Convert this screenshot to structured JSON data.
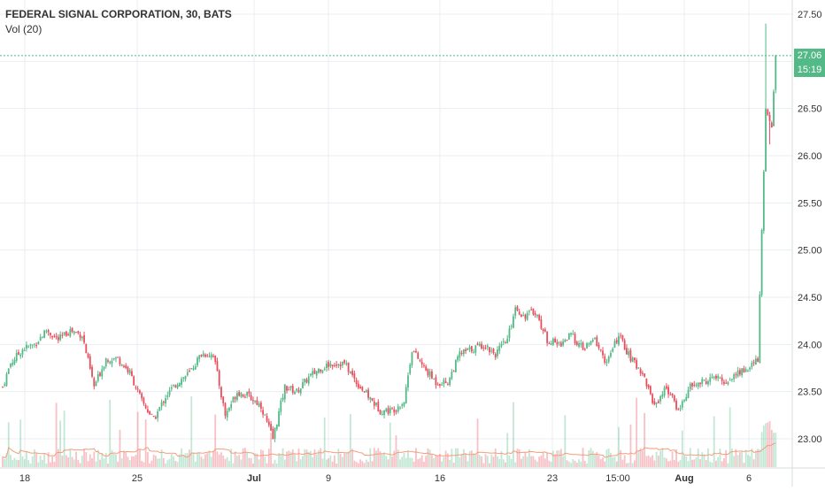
{
  "legend": {
    "title": "FEDERAL SIGNAL CORPORATION, 30, BATS",
    "volume_label": "Vol (20)"
  },
  "last_price_label": "27.06",
  "countdown_label": "15:19",
  "colors": {
    "up": "#53b987",
    "down": "#eb4d5c",
    "grid": "#e9eef2",
    "axis_text": "#333333",
    "price_tag": "#53b987",
    "volume_ma": "#f59d7b"
  },
  "chart_data": {
    "type": "candlestick",
    "symbol": "FEDERAL SIGNAL CORPORATION",
    "interval": "30",
    "exchange": "BATS",
    "y_ticks": [
      "27.50",
      "27.00",
      "26.50",
      "26.00",
      "25.50",
      "25.00",
      "24.50",
      "24.00",
      "23.50",
      "23.00"
    ],
    "ylim": [
      22.7,
      27.65
    ],
    "x_ticks": [
      "18",
      "25",
      "Jul",
      "9",
      "16",
      "23",
      "15:00",
      "Aug",
      "6"
    ],
    "bold_x_ticks": [
      "Jul",
      "Aug"
    ],
    "last_price": 27.06,
    "approx_close_path": [
      {
        "bar": 0,
        "close": 23.55
      },
      {
        "bar": 4,
        "close": 23.8
      },
      {
        "bar": 10,
        "close": 23.95
      },
      {
        "bar": 16,
        "close": 24.0
      },
      {
        "bar": 22,
        "close": 24.15
      },
      {
        "bar": 28,
        "close": 24.05
      },
      {
        "bar": 34,
        "close": 24.15
      },
      {
        "bar": 40,
        "close": 24.1
      },
      {
        "bar": 46,
        "close": 23.55
      },
      {
        "bar": 52,
        "close": 23.85
      },
      {
        "bar": 58,
        "close": 23.85
      },
      {
        "bar": 64,
        "close": 23.7
      },
      {
        "bar": 70,
        "close": 23.4
      },
      {
        "bar": 76,
        "close": 23.2
      },
      {
        "bar": 82,
        "close": 23.45
      },
      {
        "bar": 88,
        "close": 23.6
      },
      {
        "bar": 94,
        "close": 23.7
      },
      {
        "bar": 100,
        "close": 23.9
      },
      {
        "bar": 106,
        "close": 23.9
      },
      {
        "bar": 112,
        "close": 23.25
      },
      {
        "bar": 118,
        "close": 23.5
      },
      {
        "bar": 124,
        "close": 23.45
      },
      {
        "bar": 130,
        "close": 23.35
      },
      {
        "bar": 136,
        "close": 23.0
      },
      {
        "bar": 142,
        "close": 23.55
      },
      {
        "bar": 148,
        "close": 23.5
      },
      {
        "bar": 154,
        "close": 23.65
      },
      {
        "bar": 160,
        "close": 23.75
      },
      {
        "bar": 166,
        "close": 23.8
      },
      {
        "bar": 172,
        "close": 23.8
      },
      {
        "bar": 178,
        "close": 23.6
      },
      {
        "bar": 184,
        "close": 23.45
      },
      {
        "bar": 190,
        "close": 23.3
      },
      {
        "bar": 196,
        "close": 23.3
      },
      {
        "bar": 202,
        "close": 23.4
      },
      {
        "bar": 206,
        "close": 23.95
      },
      {
        "bar": 212,
        "close": 23.75
      },
      {
        "bar": 218,
        "close": 23.6
      },
      {
        "bar": 224,
        "close": 23.6
      },
      {
        "bar": 230,
        "close": 23.9
      },
      {
        "bar": 236,
        "close": 23.95
      },
      {
        "bar": 242,
        "close": 24.0
      },
      {
        "bar": 248,
        "close": 23.9
      },
      {
        "bar": 254,
        "close": 24.05
      },
      {
        "bar": 258,
        "close": 24.4
      },
      {
        "bar": 262,
        "close": 24.3
      },
      {
        "bar": 268,
        "close": 24.35
      },
      {
        "bar": 274,
        "close": 24.05
      },
      {
        "bar": 280,
        "close": 24.0
      },
      {
        "bar": 286,
        "close": 24.1
      },
      {
        "bar": 292,
        "close": 23.95
      },
      {
        "bar": 298,
        "close": 24.05
      },
      {
        "bar": 304,
        "close": 23.8
      },
      {
        "bar": 310,
        "close": 24.1
      },
      {
        "bar": 316,
        "close": 23.85
      },
      {
        "bar": 322,
        "close": 23.7
      },
      {
        "bar": 328,
        "close": 23.35
      },
      {
        "bar": 334,
        "close": 23.55
      },
      {
        "bar": 340,
        "close": 23.3
      },
      {
        "bar": 346,
        "close": 23.55
      },
      {
        "bar": 352,
        "close": 23.6
      },
      {
        "bar": 358,
        "close": 23.65
      },
      {
        "bar": 364,
        "close": 23.6
      },
      {
        "bar": 370,
        "close": 23.7
      },
      {
        "bar": 376,
        "close": 23.75
      },
      {
        "bar": 380,
        "close": 23.85
      },
      {
        "bar": 384,
        "close": 26.5
      },
      {
        "bar": 387,
        "close": 26.3
      },
      {
        "bar": 389,
        "close": 27.06
      }
    ]
  }
}
